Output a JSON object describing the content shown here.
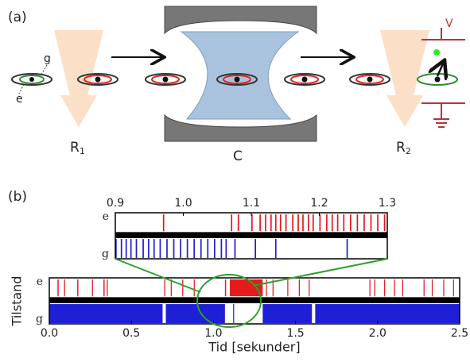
{
  "panel_a": {
    "label": "(a)",
    "ground": "g",
    "excited": "e",
    "zone1": {
      "base": "R",
      "sub": "1"
    },
    "cavity": "C",
    "zone2": {
      "base": "R",
      "sub": "2"
    },
    "voltage": "V"
  },
  "panel_b": {
    "label": "(b)"
  },
  "chart_data": [
    {
      "type": "event",
      "xlim": [
        0.9,
        1.3
      ],
      "xticks": [
        0.9,
        {
          "value": 1.0,
          "label": "1.0"
        },
        1.1,
        1.2,
        1.3
      ],
      "xaxis": "top",
      "categories": [
        "e",
        "g"
      ],
      "series": [
        {
          "color": "#e41a1c",
          "values": [
            [
              0.97,
              0.972
            ],
            [
              1.07,
              1.072
            ],
            [
              1.08,
              1.082
            ],
            [
              1.1,
              1.102
            ],
            [
              1.112,
              1.114
            ],
            [
              1.12,
              1.122
            ],
            [
              1.128,
              1.13
            ],
            [
              1.135,
              1.137
            ],
            [
              1.142,
              1.144
            ],
            [
              1.15,
              1.152
            ],
            [
              1.16,
              1.162
            ],
            [
              1.168,
              1.17
            ],
            [
              1.175,
              1.177
            ],
            [
              1.183,
              1.185
            ],
            [
              1.19,
              1.192
            ],
            [
              1.2,
              1.202
            ],
            [
              1.21,
              1.212
            ],
            [
              1.218,
              1.22
            ],
            [
              1.226,
              1.228
            ],
            [
              1.235,
              1.237
            ],
            [
              1.245,
              1.247
            ],
            [
              1.255,
              1.257
            ],
            [
              1.265,
              1.267
            ],
            [
              1.275,
              1.277
            ],
            [
              1.285,
              1.287
            ],
            [
              1.295,
              1.297
            ]
          ]
        },
        {
          "color": "#1f1fd6",
          "values": [
            [
              0.9,
              0.902
            ],
            [
              0.908,
              0.91
            ],
            [
              0.915,
              0.917
            ],
            [
              0.922,
              0.924
            ],
            [
              0.93,
              0.932
            ],
            [
              0.94,
              0.942
            ],
            [
              0.948,
              0.95
            ],
            [
              0.956,
              0.958
            ],
            [
              0.965,
              0.967
            ],
            [
              0.975,
              0.977
            ],
            [
              0.985,
              0.987
            ],
            [
              0.995,
              0.997
            ],
            [
              1.005,
              1.007
            ],
            [
              1.015,
              1.017
            ],
            [
              1.025,
              1.027
            ],
            [
              1.035,
              1.037
            ],
            [
              1.045,
              1.047
            ],
            [
              1.055,
              1.057
            ],
            [
              1.062,
              1.064
            ],
            [
              1.075,
              1.077
            ],
            [
              1.105,
              1.107
            ],
            [
              1.135,
              1.137
            ],
            [
              1.24,
              1.242
            ]
          ]
        }
      ]
    },
    {
      "type": "event",
      "xlim": [
        0.0,
        2.5
      ],
      "xticks": [
        {
          "value": 0.0,
          "label": "0.0"
        },
        0.5,
        {
          "value": 1.0,
          "label": "1.0"
        },
        1.5,
        {
          "value": 2.0,
          "label": "2.0"
        },
        2.5
      ],
      "xaxis": "bottom",
      "xlabel": "Tid [sekunder]",
      "ylabel": "Tilstand",
      "categories": [
        "e",
        "g"
      ],
      "series": [
        {
          "color": "#e41a1c",
          "values": [
            [
              0.05,
              0.057
            ],
            [
              0.09,
              0.096
            ],
            [
              0.17,
              0.177
            ],
            [
              0.26,
              0.266
            ],
            [
              0.33,
              0.337
            ],
            [
              0.35,
              0.356
            ],
            [
              0.7,
              0.706
            ],
            [
              0.74,
              0.746
            ],
            [
              0.81,
              0.816
            ],
            [
              0.88,
              0.886
            ],
            [
              1.07,
              1.077
            ],
            [
              1.1,
              1.3
            ],
            [
              1.32,
              1.326
            ],
            [
              1.36,
              1.366
            ],
            [
              1.45,
              1.456
            ],
            [
              1.52,
              1.526
            ],
            [
              1.58,
              1.586
            ],
            [
              1.95,
              1.956
            ],
            [
              1.98,
              1.986
            ],
            [
              2.04,
              2.046
            ],
            [
              2.1,
              2.106
            ],
            [
              2.15,
              2.156
            ],
            [
              2.28,
              2.286
            ],
            [
              2.33,
              2.336
            ],
            [
              2.4,
              2.406
            ],
            [
              2.46,
              2.466
            ]
          ]
        },
        {
          "color": "#1f1fd6",
          "values": [
            [
              0.0,
              0.69
            ],
            [
              0.71,
              1.07
            ],
            [
              1.12,
              1.125
            ],
            [
              1.3,
              1.6
            ],
            [
              1.62,
              2.5
            ]
          ]
        }
      ]
    }
  ]
}
